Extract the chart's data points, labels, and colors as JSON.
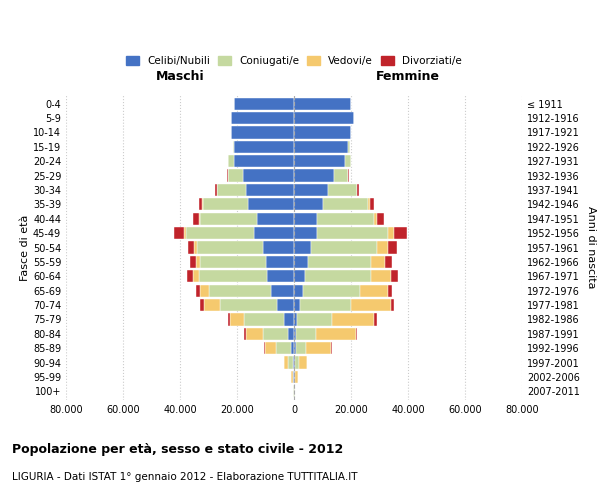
{
  "age_groups": [
    "0-4",
    "5-9",
    "10-14",
    "15-19",
    "20-24",
    "25-29",
    "30-34",
    "35-39",
    "40-44",
    "45-49",
    "50-54",
    "55-59",
    "60-64",
    "65-69",
    "70-74",
    "75-79",
    "80-84",
    "85-89",
    "90-94",
    "95-99",
    "100+"
  ],
  "birth_years": [
    "2007-2011",
    "2002-2006",
    "1997-2001",
    "1992-1996",
    "1987-1991",
    "1982-1986",
    "1977-1981",
    "1972-1976",
    "1967-1971",
    "1962-1966",
    "1957-1961",
    "1952-1956",
    "1947-1951",
    "1942-1946",
    "1937-1941",
    "1932-1936",
    "1927-1931",
    "1922-1926",
    "1917-1921",
    "1912-1916",
    "≤ 1911"
  ],
  "colors": {
    "celibe": "#4472C4",
    "coniugato": "#C5D9A0",
    "vedovo": "#F5C96E",
    "divorziato": "#C0232A"
  },
  "male": {
    "celibe": [
      21000,
      22000,
      22000,
      21000,
      21000,
      18000,
      17000,
      16000,
      13000,
      14000,
      11000,
      10000,
      9500,
      8000,
      6000,
      3500,
      2000,
      1200,
      500,
      200,
      100
    ],
    "coniugato": [
      20,
      50,
      100,
      500,
      2000,
      5000,
      10000,
      16000,
      20000,
      24000,
      23000,
      23000,
      24000,
      22000,
      20000,
      14000,
      9000,
      5000,
      1500,
      300,
      100
    ],
    "vedovo": [
      1,
      2,
      5,
      10,
      20,
      50,
      100,
      150,
      300,
      500,
      1000,
      1500,
      2000,
      3000,
      5500,
      5000,
      6000,
      4000,
      1500,
      500,
      200
    ],
    "divorziato": [
      2,
      5,
      10,
      30,
      100,
      300,
      700,
      1200,
      2000,
      3500,
      2200,
      2000,
      2000,
      1500,
      1500,
      800,
      400,
      200,
      100,
      50,
      20
    ]
  },
  "female": {
    "nubile": [
      20000,
      21000,
      20000,
      19000,
      18000,
      14000,
      12000,
      10000,
      8000,
      8000,
      6000,
      5000,
      4000,
      3000,
      2000,
      1200,
      800,
      600,
      400,
      200,
      100
    ],
    "coniugata": [
      20,
      50,
      100,
      500,
      2000,
      5000,
      10000,
      16000,
      20000,
      25000,
      23000,
      22000,
      23000,
      20000,
      18000,
      12000,
      7000,
      3500,
      1200,
      300,
      100
    ],
    "vedova": [
      1,
      2,
      5,
      10,
      30,
      100,
      200,
      500,
      1000,
      2000,
      4000,
      5000,
      7000,
      10000,
      14000,
      15000,
      14000,
      9000,
      3000,
      800,
      300
    ],
    "divorziata": [
      2,
      5,
      10,
      30,
      100,
      300,
      700,
      1500,
      2500,
      4500,
      3000,
      2500,
      2500,
      1500,
      1200,
      800,
      400,
      200,
      100,
      50,
      20
    ]
  },
  "xlim": 80000,
  "xticks": [
    -80000,
    -60000,
    -40000,
    -20000,
    0,
    20000,
    40000,
    60000,
    80000
  ],
  "xticklabels": [
    "80.000",
    "60.000",
    "40.000",
    "20.000",
    "0",
    "20.000",
    "40.000",
    "60.000",
    "80.000"
  ],
  "title": "Popolazione per età, sesso e stato civile - 2012",
  "subtitle": "LIGURIA - Dati ISTAT 1° gennaio 2012 - Elaborazione TUTTITALIA.IT",
  "ylabel_left": "Fasce di età",
  "ylabel_right": "Anni di nascita",
  "header_left": "Maschi",
  "header_right": "Femmine",
  "legend_labels": [
    "Celibi/Nubili",
    "Coniugati/e",
    "Vedovi/e",
    "Divorziati/e"
  ],
  "bg_color": "#FFFFFF",
  "grid_color": "#CCCCCC"
}
